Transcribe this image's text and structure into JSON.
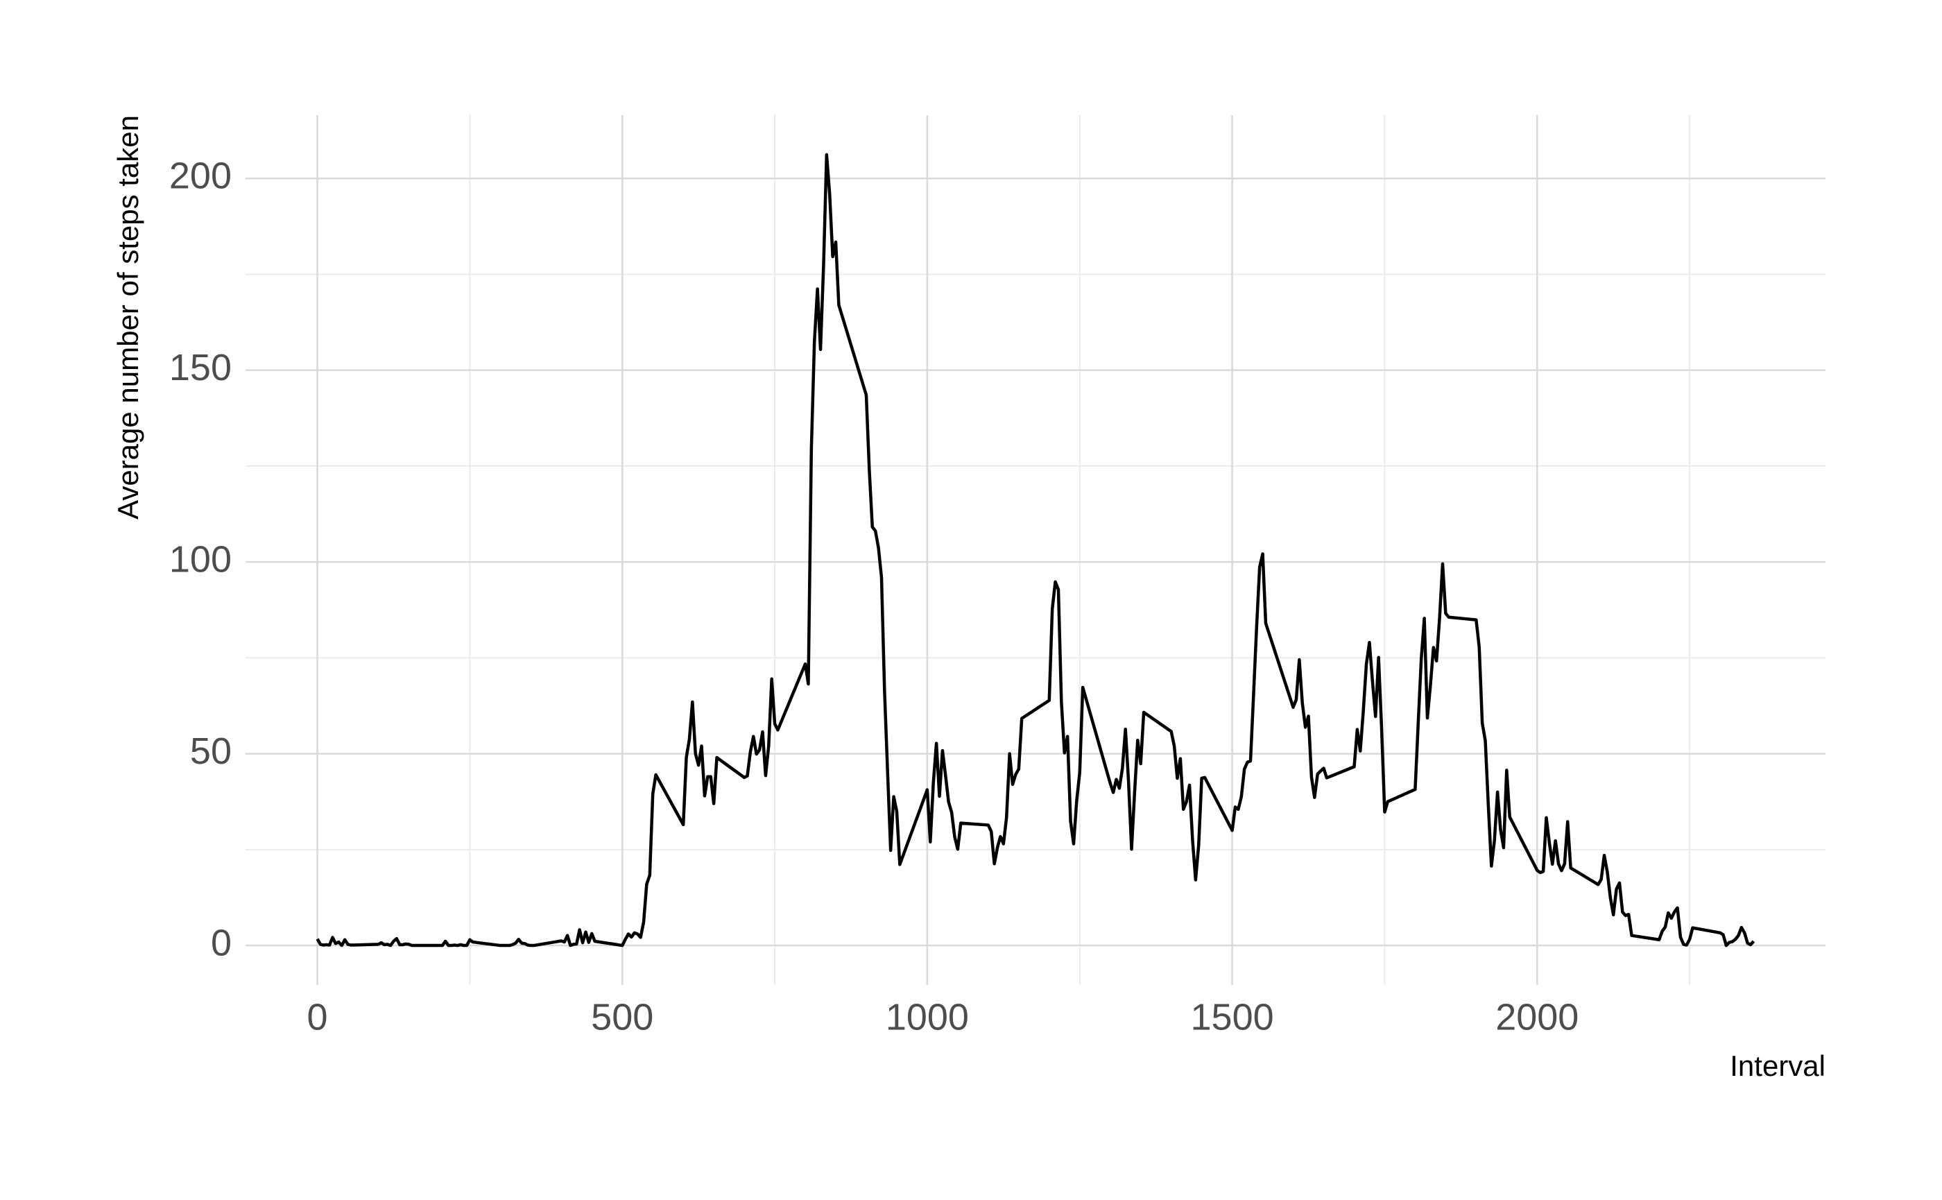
{
  "chart_data": {
    "type": "line",
    "x_label": "Interval",
    "y_label": "Average number of steps taken",
    "color": "#000000",
    "grid": true,
    "xlim": [
      -117.75,
      2472.75
    ],
    "ylim": [
      -10.3,
      216.5
    ],
    "xticks": [
      0,
      500,
      1000,
      1500,
      2000
    ],
    "yticks": [
      0,
      50,
      100,
      150,
      200
    ],
    "xminorticks": [
      250,
      750,
      1250,
      1750,
      2250
    ],
    "yminorticks": [
      25,
      75,
      125,
      175
    ],
    "x": [
      0,
      5,
      10,
      15,
      20,
      25,
      30,
      35,
      40,
      45,
      50,
      55,
      100,
      105,
      110,
      115,
      120,
      125,
      130,
      135,
      140,
      145,
      150,
      155,
      200,
      205,
      210,
      215,
      220,
      225,
      230,
      235,
      240,
      245,
      250,
      255,
      300,
      305,
      310,
      315,
      320,
      325,
      330,
      335,
      340,
      345,
      350,
      355,
      400,
      405,
      410,
      415,
      420,
      425,
      430,
      435,
      440,
      445,
      450,
      455,
      500,
      505,
      510,
      515,
      520,
      525,
      530,
      535,
      540,
      545,
      550,
      555,
      600,
      605,
      610,
      615,
      620,
      625,
      630,
      635,
      640,
      645,
      650,
      655,
      700,
      705,
      710,
      715,
      720,
      725,
      730,
      735,
      740,
      745,
      750,
      755,
      800,
      805,
      810,
      815,
      820,
      825,
      830,
      835,
      840,
      845,
      850,
      855,
      900,
      905,
      910,
      915,
      920,
      925,
      930,
      935,
      940,
      945,
      950,
      955,
      1000,
      1005,
      1010,
      1015,
      1020,
      1025,
      1030,
      1035,
      1040,
      1045,
      1050,
      1055,
      1100,
      1105,
      1110,
      1115,
      1120,
      1125,
      1130,
      1135,
      1140,
      1145,
      1150,
      1155,
      1200,
      1205,
      1210,
      1215,
      1220,
      1225,
      1230,
      1235,
      1240,
      1245,
      1250,
      1255,
      1300,
      1305,
      1310,
      1315,
      1320,
      1325,
      1330,
      1335,
      1340,
      1345,
      1350,
      1355,
      1400,
      1405,
      1410,
      1415,
      1420,
      1425,
      1430,
      1435,
      1440,
      1445,
      1450,
      1455,
      1500,
      1505,
      1510,
      1515,
      1520,
      1525,
      1530,
      1535,
      1540,
      1545,
      1550,
      1555,
      1600,
      1605,
      1610,
      1615,
      1620,
      1625,
      1630,
      1635,
      1640,
      1645,
      1650,
      1655,
      1700,
      1705,
      1710,
      1715,
      1720,
      1725,
      1730,
      1735,
      1740,
      1745,
      1750,
      1755,
      1800,
      1805,
      1810,
      1815,
      1820,
      1825,
      1830,
      1835,
      1840,
      1845,
      1850,
      1855,
      1900,
      1905,
      1910,
      1915,
      1920,
      1925,
      1930,
      1935,
      1940,
      1945,
      1950,
      1955,
      2000,
      2005,
      2010,
      2015,
      2020,
      2025,
      2030,
      2035,
      2040,
      2045,
      2050,
      2055,
      2100,
      2105,
      2110,
      2115,
      2120,
      2125,
      2130,
      2135,
      2140,
      2145,
      2150,
      2155,
      2200,
      2205,
      2210,
      2215,
      2220,
      2225,
      2230,
      2235,
      2240,
      2245,
      2250,
      2255,
      2300,
      2305,
      2310,
      2315,
      2320,
      2325,
      2330,
      2335,
      2340,
      2345,
      2350,
      2355
    ],
    "values": [
      1.7,
      0.3,
      0.1,
      0.2,
      0.1,
      2.1,
      0.5,
      0.9,
      0,
      1.5,
      0.3,
      0.1,
      0.3,
      0.7,
      0.2,
      0.3,
      0,
      1.1,
      1.8,
      0.2,
      0.2,
      0.4,
      0.3,
      0,
      0,
      0,
      1.1,
      0,
      0,
      0.1,
      0,
      0.2,
      0,
      0,
      1.5,
      0.9,
      0,
      0,
      0,
      0,
      0.2,
      0.6,
      1.6,
      0.6,
      0.5,
      0.1,
      0,
      0,
      1.2,
      0.9,
      2.6,
      0,
      0.3,
      0.4,
      4.1,
      0.7,
      3.5,
      0.8,
      3.1,
      1.1,
      0,
      1.6,
      3.0,
      2.2,
      3.3,
      3.0,
      2.1,
      6.1,
      16.0,
      18.3,
      39.5,
      44.5,
      31.5,
      49.0,
      53.8,
      63.5,
      50.0,
      47.0,
      52.0,
      39.0,
      44.0,
      44.0,
      37.0,
      49.0,
      43.8,
      44.2,
      50.5,
      54.5,
      49.9,
      51.0,
      55.7,
      44.3,
      52.0,
      69.5,
      57.8,
      56.2,
      73.4,
      68.2,
      129.4,
      157.5,
      171.2,
      155.4,
      177.3,
      206.2,
      195.9,
      179.6,
      183.4,
      167.0,
      143.5,
      124.0,
      109.1,
      108.1,
      103.7,
      96.0,
      66.2,
      45.2,
      24.8,
      38.8,
      35.0,
      21.1,
      40.6,
      27.0,
      42.4,
      52.7,
      38.9,
      50.8,
      44.3,
      37.4,
      34.7,
      28.3,
      25.1,
      31.9,
      31.4,
      29.7,
      21.3,
      25.5,
      28.4,
      26.5,
      33.4,
      50.0,
      42.0,
      44.6,
      46.0,
      59.2,
      63.9,
      87.7,
      94.8,
      92.8,
      63.4,
      50.2,
      54.5,
      32.4,
      26.5,
      37.7,
      45.1,
      67.3,
      42.3,
      39.9,
      43.3,
      41.0,
      46.2,
      56.4,
      42.8,
      25.1,
      40.0,
      53.5,
      47.4,
      60.8,
      55.8,
      52.0,
      43.6,
      48.7,
      35.5,
      37.5,
      41.8,
      27.5,
      17.1,
      26.1,
      43.6,
      43.8,
      30.0,
      36.1,
      35.5,
      38.8,
      46.0,
      47.8,
      48.1,
      65.3,
      82.9,
      98.7,
      102.1,
      84.0,
      62.1,
      64.1,
      74.5,
      63.2,
      56.9,
      59.8,
      43.9,
      38.6,
      44.7,
      45.5,
      46.2,
      43.7,
      46.6,
      56.3,
      50.7,
      61.2,
      73.4,
      79.0,
      68.9,
      59.7,
      75.1,
      56.5,
      34.8,
      37.5,
      40.7,
      58.0,
      74.7,
      85.3,
      59.3,
      67.8,
      77.7,
      74.2,
      85.3,
      99.5,
      86.6,
      85.6,
      84.9,
      77.8,
      58.0,
      53.4,
      36.3,
      20.7,
      27.4,
      40.0,
      30.2,
      25.5,
      45.7,
      33.5,
      19.6,
      19.0,
      19.3,
      33.3,
      26.8,
      21.2,
      27.3,
      21.3,
      19.5,
      21.3,
      32.3,
      20.2,
      15.9,
      17.2,
      23.5,
      19.2,
      12.5,
      8.0,
      14.7,
      16.3,
      8.7,
      7.8,
      8.1,
      2.6,
      1.5,
      3.7,
      4.8,
      8.5,
      7.1,
      8.7,
      9.8,
      2.2,
      0.3,
      0.1,
      1.6,
      4.6,
      3.3,
      2.8,
      0,
      0.8,
      1.0,
      1.6,
      2.6,
      4.7,
      3.3,
      0.6,
      0.2,
      1.1
    ]
  }
}
